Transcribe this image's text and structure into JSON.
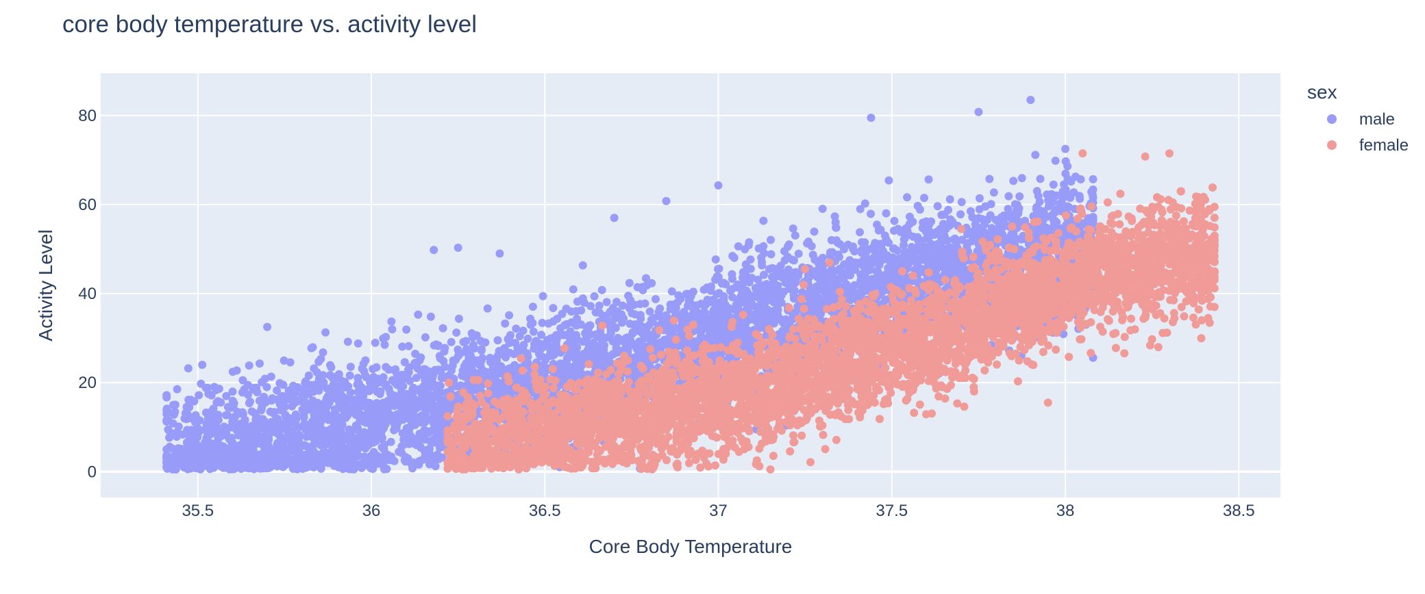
{
  "chart_data": {
    "type": "scatter",
    "title": "core body temperature vs. activity level",
    "xlabel": "Core Body Temperature",
    "ylabel": "Activity Level",
    "xlim": [
      35.22,
      38.62
    ],
    "ylim": [
      -5.8,
      89.5
    ],
    "x_ticks": [
      35.5,
      36,
      36.5,
      37,
      37.5,
      38,
      38.5
    ],
    "x_tick_labels": [
      "35.5",
      "36",
      "36.5",
      "37",
      "37.5",
      "38",
      "38.5"
    ],
    "y_ticks": [
      0,
      20,
      40,
      60,
      80
    ],
    "y_tick_labels": [
      "0",
      "20",
      "40",
      "60",
      "80"
    ],
    "grid": true,
    "legend": {
      "title": "sex",
      "placement": "right"
    },
    "series": [
      {
        "name": "male",
        "color": "#989bf7",
        "x_range": [
          35.41,
          38.08
        ],
        "y_trend": [
          [
            35.41,
            3.0
          ],
          [
            36.0,
            11.0
          ],
          [
            36.5,
            20.0
          ],
          [
            37.0,
            30.0
          ],
          [
            37.5,
            42.0
          ],
          [
            38.0,
            50.0
          ]
        ],
        "points": [
          [
            35.41,
            5.0
          ],
          [
            35.6,
            18.0
          ],
          [
            35.7,
            32.5
          ],
          [
            36.18,
            49.8
          ],
          [
            36.25,
            50.3
          ],
          [
            36.37,
            49.0
          ],
          [
            36.7,
            57.0
          ],
          [
            36.85,
            60.8
          ],
          [
            37.0,
            64.3
          ],
          [
            37.44,
            79.5
          ],
          [
            37.75,
            80.8
          ],
          [
            37.9,
            83.5
          ],
          [
            38.0,
            72.5
          ]
        ]
      },
      {
        "name": "female",
        "color": "#f19b98",
        "x_range": [
          36.22,
          38.43
        ],
        "y_trend": [
          [
            36.25,
            5.0
          ],
          [
            36.5,
            9.0
          ],
          [
            37.0,
            16.0
          ],
          [
            37.5,
            27.0
          ],
          [
            38.0,
            42.0
          ],
          [
            38.3,
            48.0
          ]
        ],
        "points": [
          [
            36.22,
            6.5
          ],
          [
            36.6,
            20.0
          ],
          [
            37.15,
            0.5
          ],
          [
            37.25,
            45.5
          ],
          [
            37.7,
            54.5
          ],
          [
            37.95,
            15.5
          ],
          [
            38.05,
            71.5
          ],
          [
            38.3,
            71.5
          ],
          [
            38.43,
            53.0
          ]
        ]
      }
    ]
  }
}
